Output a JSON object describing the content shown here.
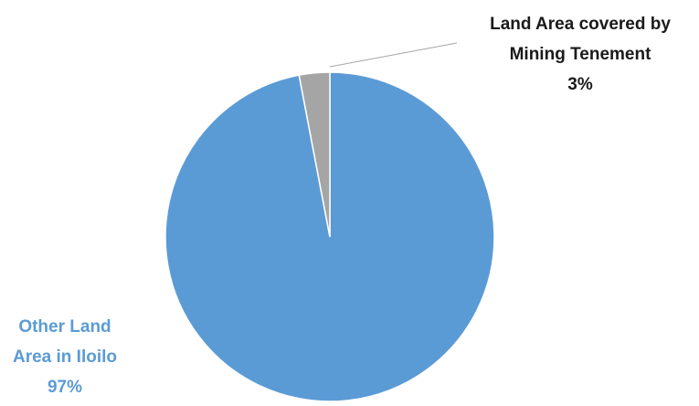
{
  "chart_data": {
    "type": "pie",
    "slices": [
      {
        "label_lines": [
          "Other Land",
          "Area in Iloilo"
        ],
        "value": 97,
        "value_label": "97%",
        "color": "#5b9bd5"
      },
      {
        "label_lines": [
          "Land Area covered by",
          "Mining Tenement"
        ],
        "value": 3,
        "value_label": "3%",
        "color": "#a5a5a5"
      }
    ],
    "legend": "none",
    "start_angle_deg": 0,
    "direction": "clockwise"
  }
}
